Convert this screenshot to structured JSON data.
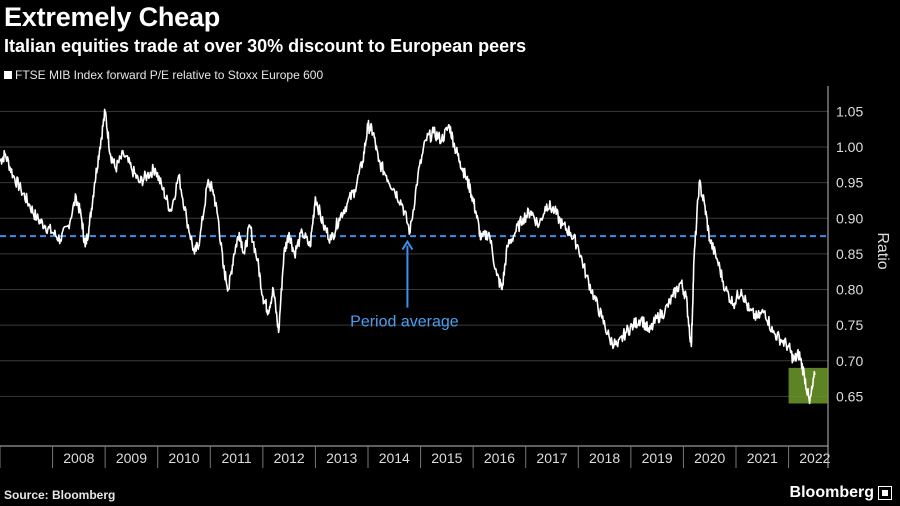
{
  "header": {
    "title": "Extremely Cheap",
    "subtitle": "Italian equities trade at over 30% discount to European peers"
  },
  "footer": {
    "source": "Source: Bloomberg",
    "brand": "Bloomberg"
  },
  "colors": {
    "background": "#000000",
    "series": "#ffffff",
    "average_line": "#3d8ff0",
    "highlight_box": "#6f9a2a"
  },
  "chart_data": {
    "type": "line",
    "title": "Extremely Cheap",
    "subtitle": "Italian equities trade at over 30% discount to European peers",
    "ylabel": "Ratio",
    "ylim": [
      0.6,
      1.08
    ],
    "y_ticks": [
      0.65,
      0.7,
      0.75,
      0.8,
      0.85,
      0.9,
      0.95,
      1.0,
      1.05
    ],
    "y_tick_labels": [
      "0.65",
      "0.70",
      "0.75",
      "0.80",
      "0.85",
      "0.90",
      "0.95",
      "1.00",
      "1.05"
    ],
    "x_range": [
      2007.0,
      2022.75
    ],
    "x_ticks": [
      2008,
      2009,
      2010,
      2011,
      2012,
      2013,
      2014,
      2015,
      2016,
      2017,
      2018,
      2019,
      2020,
      2021,
      2022
    ],
    "grid": "horizontal",
    "legend": "top-left",
    "series": [
      {
        "name": "FTSE MIB Index forward P/E relative to Stoxx Europe 600",
        "x": [
          2007.0,
          2007.1,
          2007.25,
          2007.4,
          2007.55,
          2007.7,
          2007.85,
          2008.0,
          2008.15,
          2008.3,
          2008.45,
          2008.55,
          2008.62,
          2008.7,
          2008.8,
          2008.9,
          2009.0,
          2009.1,
          2009.2,
          2009.35,
          2009.5,
          2009.65,
          2009.8,
          2009.95,
          2010.1,
          2010.25,
          2010.4,
          2010.55,
          2010.7,
          2010.8,
          2010.95,
          2011.05,
          2011.15,
          2011.25,
          2011.35,
          2011.45,
          2011.55,
          2011.65,
          2011.75,
          2011.9,
          2012.0,
          2012.1,
          2012.2,
          2012.3,
          2012.4,
          2012.5,
          2012.6,
          2012.75,
          2012.9,
          2013.0,
          2013.15,
          2013.3,
          2013.45,
          2013.6,
          2013.75,
          2013.9,
          2014.0,
          2014.1,
          2014.2,
          2014.35,
          2014.5,
          2014.65,
          2014.8,
          2014.95,
          2015.1,
          2015.25,
          2015.4,
          2015.55,
          2015.65,
          2015.75,
          2015.85,
          2015.95,
          2016.05,
          2016.15,
          2016.3,
          2016.45,
          2016.55,
          2016.65,
          2016.8,
          2016.95,
          2017.1,
          2017.25,
          2017.4,
          2017.55,
          2017.7,
          2017.85,
          2018.0,
          2018.15,
          2018.3,
          2018.45,
          2018.6,
          2018.75,
          2018.9,
          2019.05,
          2019.2,
          2019.35,
          2019.5,
          2019.65,
          2019.8,
          2019.95,
          2020.05,
          2020.15,
          2020.2,
          2020.3,
          2020.4,
          2020.5,
          2020.65,
          2020.8,
          2020.95,
          2021.1,
          2021.25,
          2021.4,
          2021.55,
          2021.7,
          2021.85,
          2022.0,
          2022.1,
          2022.2,
          2022.3,
          2022.4,
          2022.5
        ],
        "y": [
          0.98,
          0.99,
          0.96,
          0.94,
          0.92,
          0.9,
          0.89,
          0.88,
          0.87,
          0.89,
          0.93,
          0.9,
          0.86,
          0.89,
          0.95,
          1.0,
          1.05,
          0.99,
          0.97,
          0.99,
          0.97,
          0.95,
          0.96,
          0.97,
          0.94,
          0.91,
          0.96,
          0.9,
          0.85,
          0.87,
          0.95,
          0.94,
          0.9,
          0.83,
          0.8,
          0.85,
          0.88,
          0.85,
          0.89,
          0.84,
          0.79,
          0.77,
          0.8,
          0.74,
          0.85,
          0.88,
          0.85,
          0.88,
          0.86,
          0.93,
          0.89,
          0.87,
          0.9,
          0.92,
          0.94,
          0.98,
          1.03,
          1.02,
          0.98,
          0.96,
          0.94,
          0.92,
          0.88,
          0.96,
          1.01,
          1.02,
          1.01,
          1.03,
          1.0,
          0.98,
          0.96,
          0.94,
          0.91,
          0.87,
          0.88,
          0.82,
          0.8,
          0.86,
          0.88,
          0.9,
          0.91,
          0.89,
          0.92,
          0.91,
          0.89,
          0.88,
          0.86,
          0.82,
          0.79,
          0.76,
          0.73,
          0.72,
          0.74,
          0.75,
          0.76,
          0.74,
          0.76,
          0.77,
          0.79,
          0.81,
          0.79,
          0.72,
          0.84,
          0.95,
          0.92,
          0.87,
          0.84,
          0.8,
          0.78,
          0.8,
          0.77,
          0.76,
          0.77,
          0.74,
          0.73,
          0.72,
          0.7,
          0.71,
          0.68,
          0.64,
          0.68
        ]
      }
    ],
    "reference_line": {
      "value": 0.875,
      "style": "dashed"
    },
    "annotations": [
      {
        "text": "Period average",
        "x": 2014.75,
        "y": 0.755,
        "arrow_to_y": 0.87
      }
    ],
    "highlight": {
      "x": [
        2022.0,
        2022.75
      ],
      "y": [
        0.64,
        0.69
      ]
    }
  }
}
